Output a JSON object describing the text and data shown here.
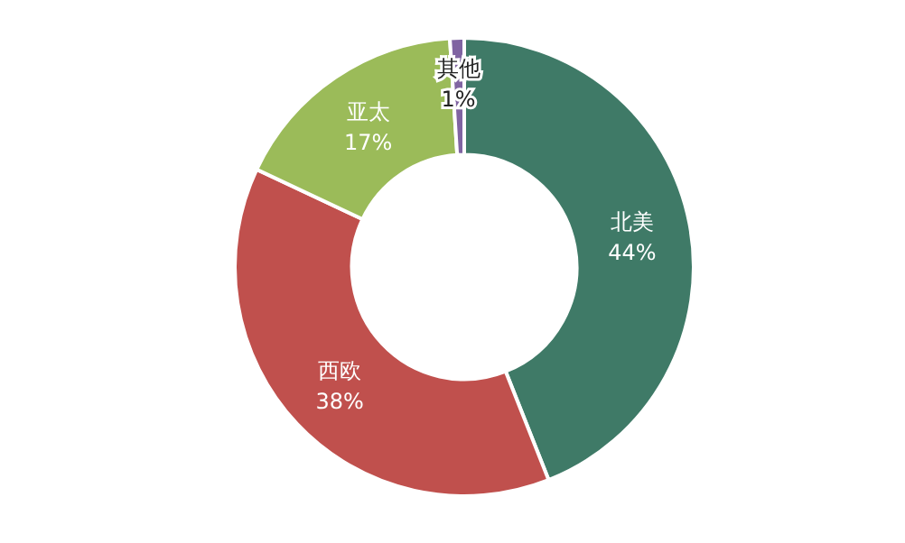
{
  "chart_data": {
    "type": "donut",
    "categories": [
      "北美",
      "西欧",
      "亚太",
      "其他"
    ],
    "values": [
      44,
      38,
      17,
      1
    ],
    "colors": [
      "#3f7a67",
      "#c0504d",
      "#9bbb59",
      "#8064a2"
    ],
    "value_labels": [
      "44%",
      "38%",
      "17%",
      "1%"
    ],
    "legend": false
  }
}
